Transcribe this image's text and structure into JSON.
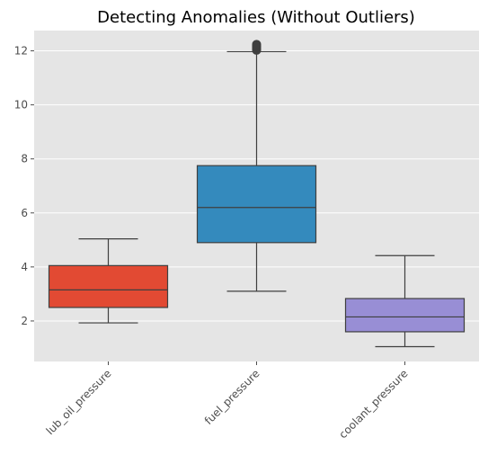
{
  "chart_data": {
    "type": "box",
    "title": "Detecting Anomalies (Without Outliers)",
    "xlabel": "",
    "ylabel": "",
    "categories": [
      "lub_oil_pressure",
      "fuel_pressure",
      "coolant_pressure"
    ],
    "boxes": [
      {
        "category": "lub_oil_pressure",
        "whisker_low": 1.93,
        "q1": 2.5,
        "median": 3.15,
        "q3": 4.05,
        "whisker_high": 5.04,
        "color": "#E24A33",
        "outliers": []
      },
      {
        "category": "fuel_pressure",
        "whisker_low": 3.1,
        "q1": 4.9,
        "median": 6.2,
        "q3": 7.75,
        "whisker_high": 11.97,
        "color": "#348ABD",
        "outliers": [
          12.02,
          12.06,
          12.09,
          12.12,
          12.15,
          12.18,
          12.21,
          12.24
        ]
      },
      {
        "category": "coolant_pressure",
        "whisker_low": 1.05,
        "q1": 1.6,
        "median": 2.15,
        "q3": 2.83,
        "whisker_high": 4.42,
        "color": "#988ED5",
        "outliers": []
      }
    ],
    "yticks": [
      2,
      4,
      6,
      8,
      10,
      12
    ],
    "ytick_labels": [
      "2",
      "4",
      "6",
      "8",
      "10",
      "12"
    ],
    "ylim": [
      0.5,
      12.75
    ],
    "grid": true,
    "tick_label_rotation_deg": 45,
    "colors": {
      "background": "#E5E5E5",
      "grid": "#FFFFFF",
      "line": "#3F3F3F",
      "tick_label": "#4D4D4D"
    }
  }
}
